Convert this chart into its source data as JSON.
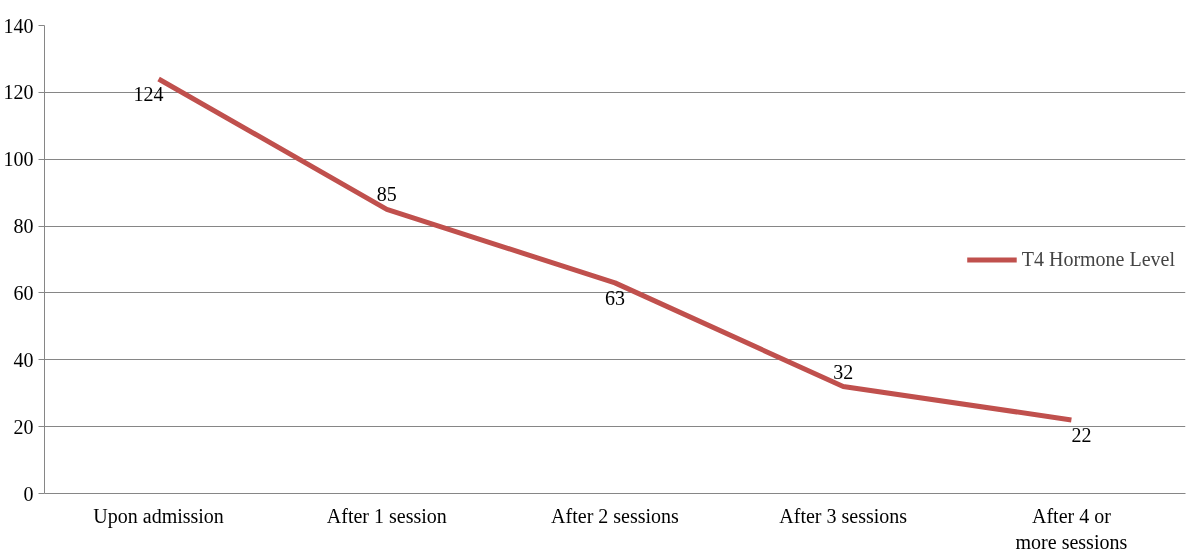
{
  "chart_data": {
    "type": "line",
    "categories": [
      "Upon admission",
      "After 1 session",
      "After 2 sessions",
      "After 3 sessions",
      "After 4 or more sessions"
    ],
    "series": [
      {
        "name": "T4 Hormone Level",
        "color": "#c0504d",
        "values": [
          124,
          85,
          63,
          32,
          22
        ]
      }
    ],
    "ylim": [
      0,
      140
    ],
    "yticks": [
      0,
      20,
      40,
      60,
      80,
      100,
      120,
      140
    ],
    "grid": "y",
    "legend": "right",
    "data_labels": true,
    "marker": "none",
    "line_style": "solid"
  }
}
